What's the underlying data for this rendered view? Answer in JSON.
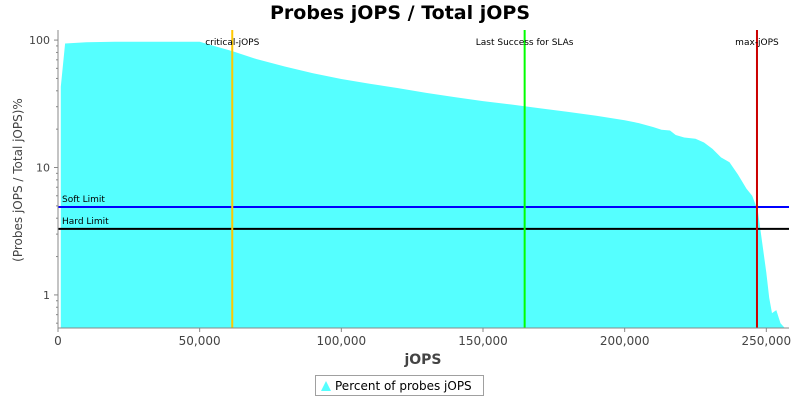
{
  "chart_data": {
    "type": "area",
    "title": "Probes jOPS / Total jOPS",
    "xlabel": "jOPS",
    "ylabel": "(Probes jOPS / Total jOPS)%",
    "y_scale": "log",
    "xlim": [
      0,
      258000
    ],
    "ylim": [
      0.55,
      120
    ],
    "x_ticks": [
      0,
      50000,
      100000,
      150000,
      200000,
      250000
    ],
    "x_tick_labels": [
      "0",
      "50,000",
      "100,000",
      "150,000",
      "200,000",
      "250,000"
    ],
    "y_ticks": [
      1,
      10,
      100
    ],
    "y_tick_labels": [
      "1",
      "10",
      "100"
    ],
    "grid": false,
    "legend_position": "bottom",
    "colors": {
      "area": "#55ffff",
      "critical": "#ffc800",
      "last_success": "#00ff00",
      "max": "#cc0000",
      "soft": "#0000ff",
      "hard": "#000000"
    },
    "series": [
      {
        "name": "Percent of probes jOPS",
        "x": [
          1000,
          2500,
          10000,
          20000,
          30000,
          40000,
          50000,
          55000,
          61500,
          70000,
          80000,
          90000,
          100000,
          110000,
          120000,
          130000,
          140000,
          150000,
          160000,
          170000,
          180000,
          190000,
          200000,
          205000,
          210000,
          213000,
          216000,
          218000,
          221000,
          225000,
          228000,
          231000,
          234000,
          237000,
          240000,
          243000,
          245000,
          247000,
          248500,
          250000,
          251000,
          252000,
          253500,
          255000,
          256500
        ],
        "y": [
          43,
          94,
          96,
          97,
          97,
          97,
          97,
          90,
          82,
          71,
          62,
          55,
          49.5,
          45.5,
          42,
          38.5,
          35.7,
          33.2,
          31.2,
          29.2,
          27.3,
          25.5,
          23.5,
          22.3,
          20.8,
          19.8,
          19.5,
          18,
          17.2,
          16.8,
          15.7,
          14,
          12,
          11,
          8.8,
          6.8,
          6,
          4.6,
          2.6,
          1.5,
          0.95,
          0.72,
          0.76,
          0.6,
          0.55
        ]
      }
    ],
    "vertical_markers": [
      {
        "label": "critical-jOPS",
        "x": 61500
      },
      {
        "label": "Last Success for SLAs",
        "x": 164700
      },
      {
        "label": "max-jOPS",
        "x": 246700
      }
    ],
    "horizontal_markers": [
      {
        "label": "Soft Limit",
        "y": 4.9
      },
      {
        "label": "Hard Limit",
        "y": 3.3
      }
    ]
  }
}
